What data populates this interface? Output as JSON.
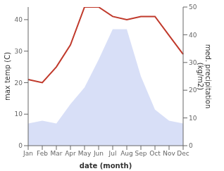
{
  "chart_data": {
    "type": "line",
    "categories": [
      "Jan",
      "Feb",
      "Mar",
      "Apr",
      "May",
      "Jun",
      "Jul",
      "Aug",
      "Sep",
      "Oct",
      "Nov",
      "Dec"
    ],
    "series": [
      {
        "type": "area",
        "axis": "y2",
        "color": "#b8c4f0",
        "values": [
          8,
          9,
          8,
          15,
          21,
          31,
          42,
          42,
          25,
          13,
          9,
          8
        ]
      },
      {
        "type": "line",
        "color": "#c0392b",
        "values": [
          21,
          20,
          25,
          32,
          44,
          44,
          41,
          40,
          41,
          41,
          35,
          29
        ]
      }
    ],
    "ylim": [
      0,
      44
    ],
    "yticks": [
      0,
      10,
      20,
      30,
      40
    ],
    "y2lim": [
      0,
      50
    ],
    "y2ticks": [
      0,
      10,
      20,
      30,
      40,
      50
    ],
    "ylabel": "max temp (C)",
    "y2label": "med. precipitation\n(kg/m2)",
    "xlabel": "date (month)",
    "grid": false
  }
}
